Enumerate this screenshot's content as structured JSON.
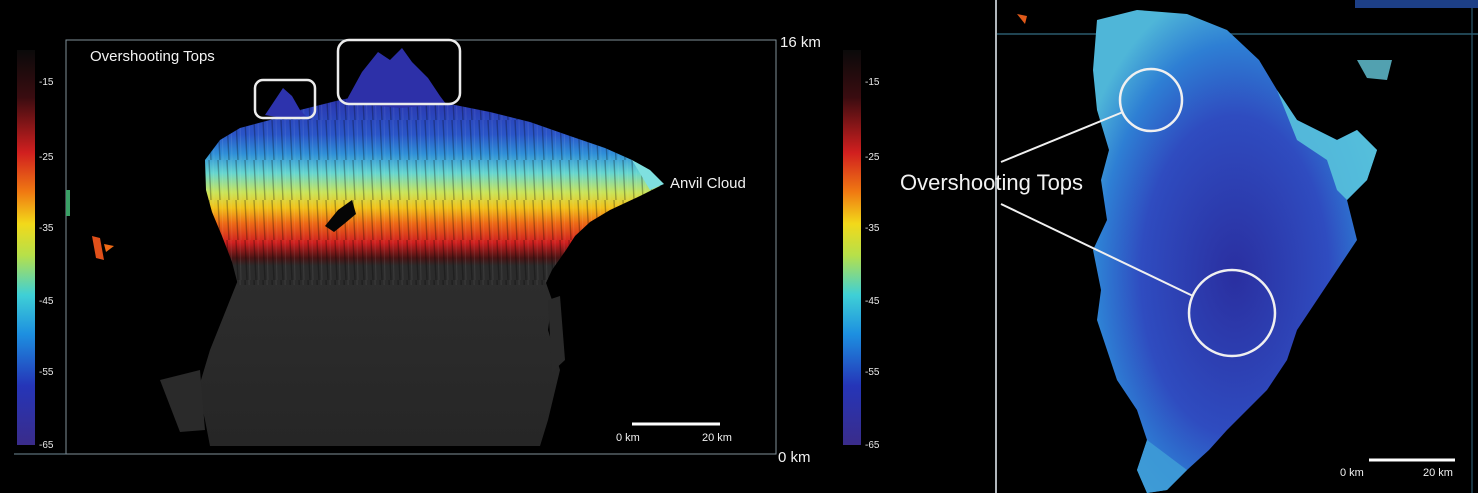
{
  "left": {
    "overshooting_label": "Overshooting Tops",
    "anvil_label": "Anvil Cloud",
    "top_altitude": "16 km",
    "bottom_altitude": "0 km",
    "scale_start": "0 km",
    "scale_end": "20 km",
    "colorbar_ticks": [
      "-15",
      "-25",
      "-35",
      "-45",
      "-55",
      "-65"
    ]
  },
  "right": {
    "overshooting_label": "Overshooting Tops",
    "scale_start": "0 km",
    "scale_end": "20 km"
  }
}
